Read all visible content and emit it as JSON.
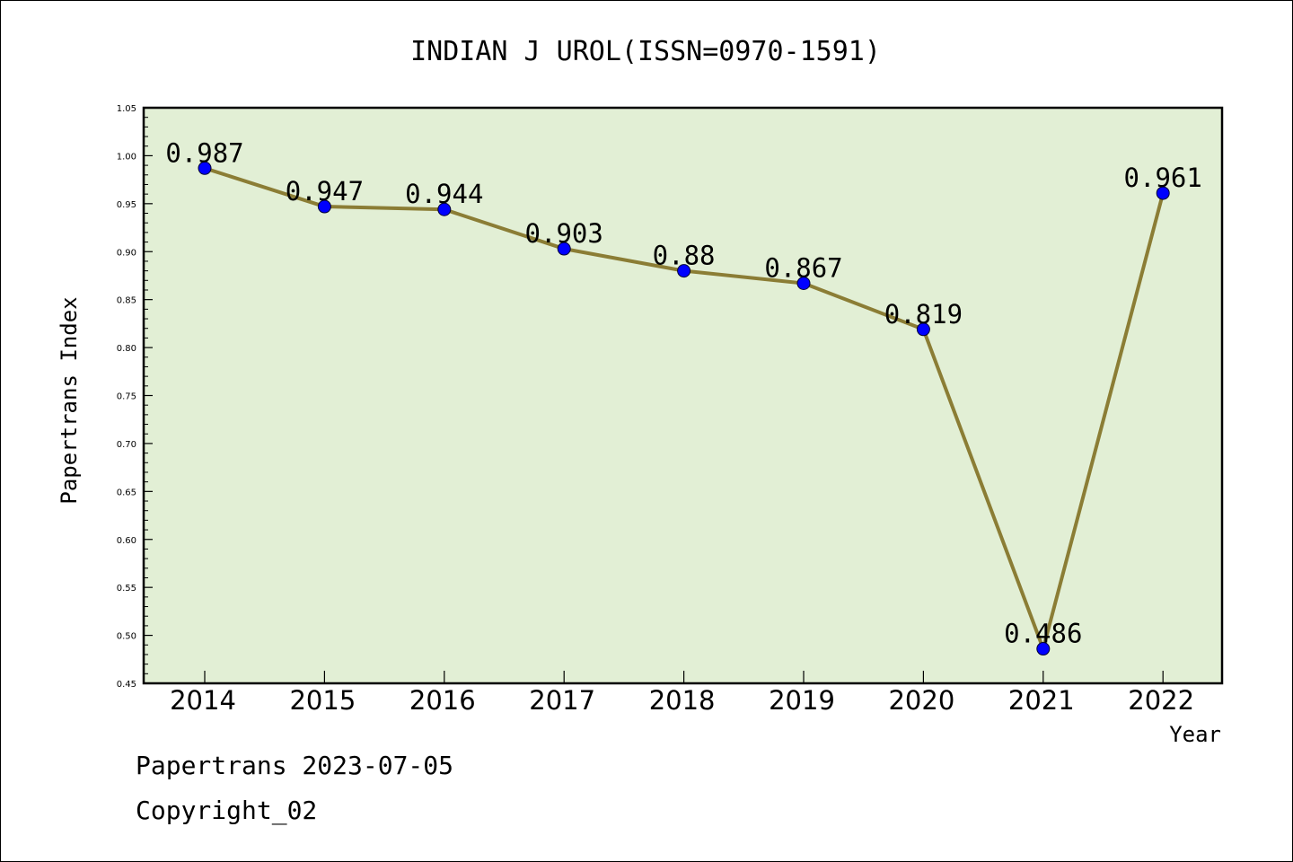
{
  "chart_data": {
    "type": "line",
    "title": "INDIAN J UROL(ISSN=0970-1591)",
    "xlabel": "Year",
    "ylabel": "Papertrans Index",
    "categories": [
      "2014",
      "2015",
      "2016",
      "2017",
      "2018",
      "2019",
      "2020",
      "2021",
      "2022"
    ],
    "series": [
      {
        "values": [
          0.987,
          0.947,
          0.944,
          0.903,
          0.88,
          0.867,
          0.819,
          0.486,
          0.961
        ],
        "labels": [
          "0.987",
          "0.947",
          "0.944",
          "0.903",
          "0.88",
          "0.867",
          "0.819",
          "0.486",
          "0.961"
        ]
      }
    ],
    "ylim": [
      0.45,
      1.05
    ],
    "yticks": [
      "0.45",
      "0.50",
      "0.55",
      "0.60",
      "0.65",
      "0.70",
      "0.75",
      "0.80",
      "0.85",
      "0.90",
      "0.95",
      "1.00",
      "1.05"
    ],
    "grid": false,
    "colors": {
      "plot_background": "#e2efd5",
      "line": "#8b7d35",
      "marker": "#0000ff"
    }
  },
  "footer": {
    "line1": "Papertrans 2023-07-05",
    "line2": "Copyright_02"
  }
}
